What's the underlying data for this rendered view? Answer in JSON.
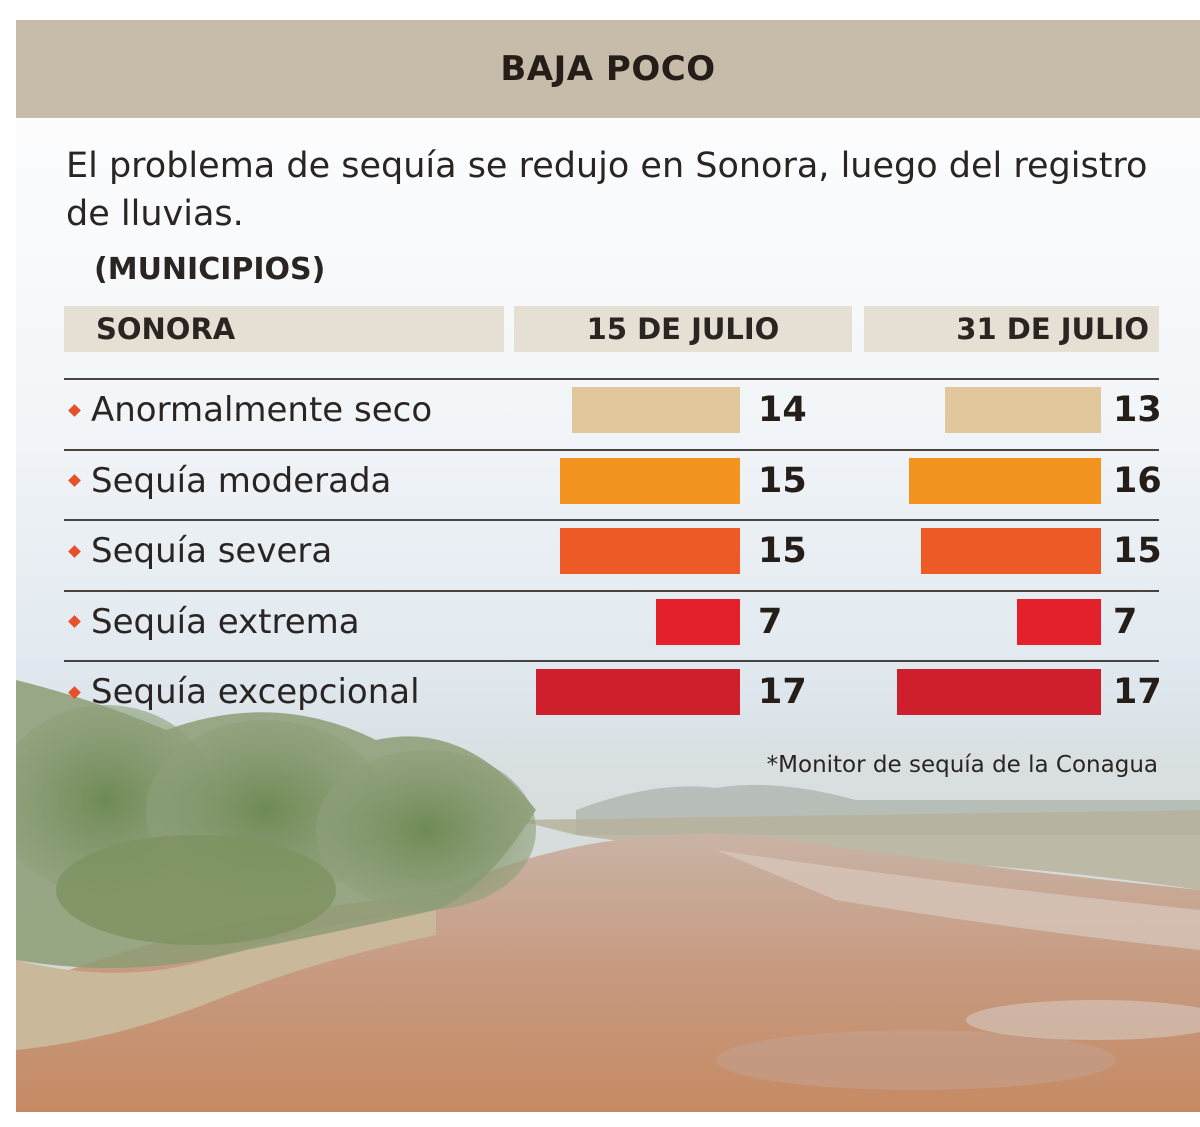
{
  "header": {
    "title": "BAJA POCO"
  },
  "subtitle": "El problema de sequía se redujo en Sonora, luego del registro de lluvias.",
  "units": "(MUNICIPIOS)",
  "source": "*Monitor de sequía de la Conagua",
  "colors": {
    "header_bg": "#c7bbaa",
    "colhead_bg": "#e6dfd3",
    "bullet": "#e8502a"
  },
  "chart_data": {
    "type": "bar",
    "orientation": "horizontal",
    "category_header": "SONORA",
    "categories": [
      "Anormalmente seco",
      "Sequía moderada",
      "Sequía severa",
      "Sequía extrema",
      "Sequía excepcional"
    ],
    "category_colors": [
      "#e2c79c",
      "#f2941f",
      "#ee5a25",
      "#e4202a",
      "#cf1f2c"
    ],
    "series": [
      {
        "name": "15 DE JULIO",
        "values": [
          14,
          15,
          15,
          7,
          17
        ]
      },
      {
        "name": "31 DE JULIO",
        "values": [
          13,
          16,
          15,
          7,
          17
        ]
      }
    ],
    "data_labels": true
  }
}
